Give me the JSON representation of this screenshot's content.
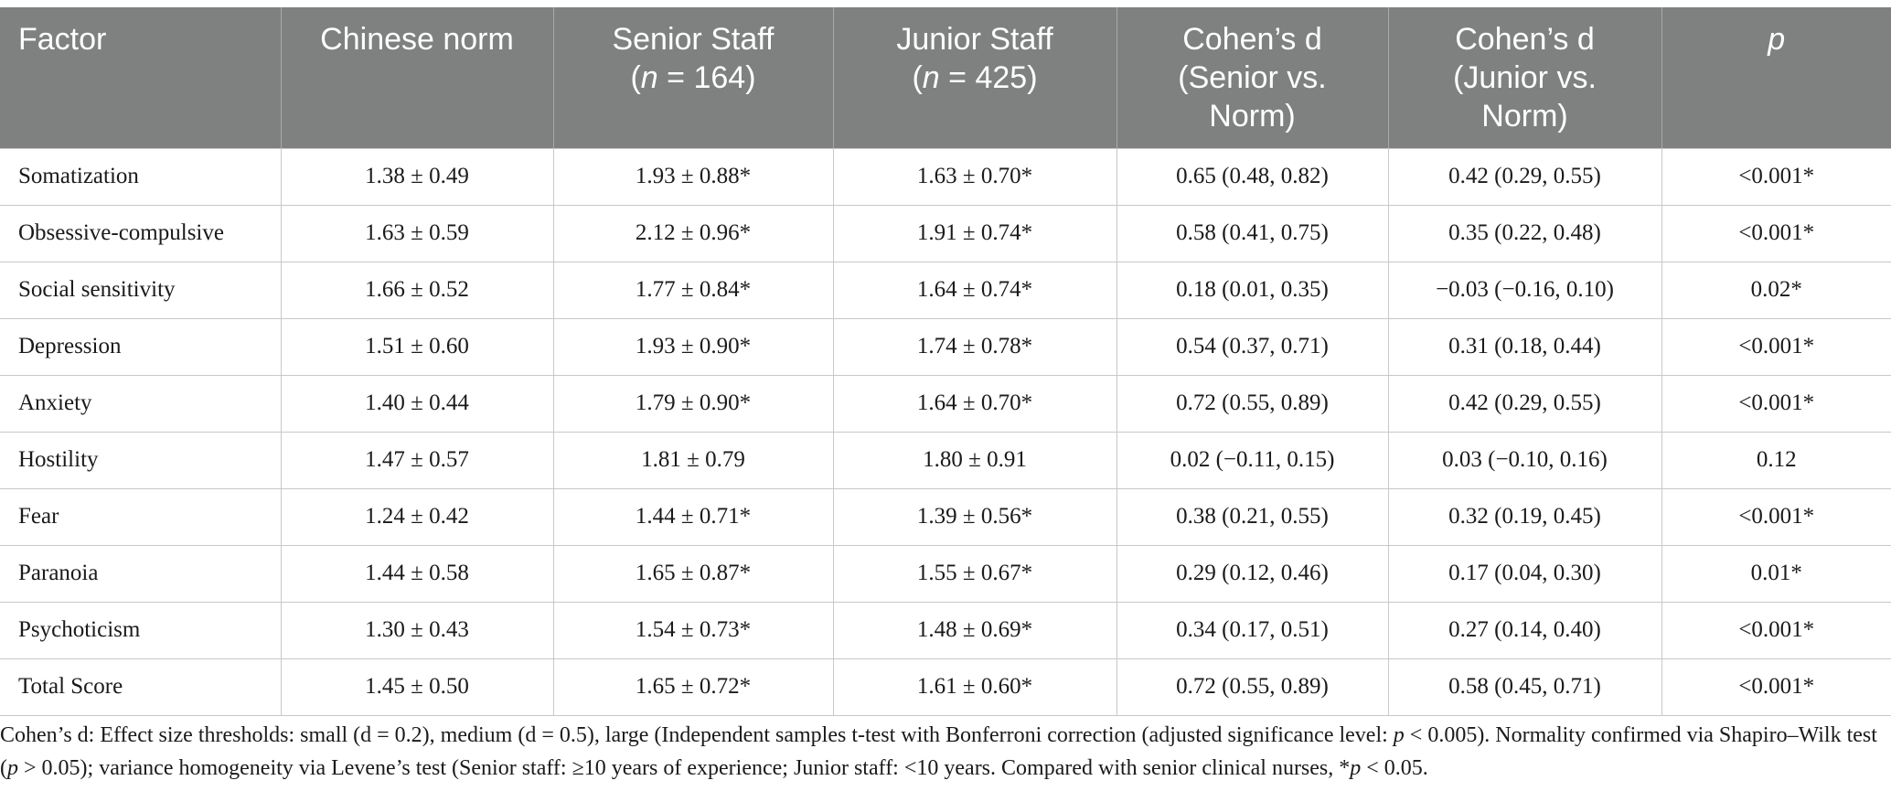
{
  "table": {
    "headers": [
      {
        "line1": "Factor",
        "line2": "",
        "line3": ""
      },
      {
        "line1": "Chinese norm",
        "line2": "",
        "line3": ""
      },
      {
        "line1": "Senior Staff",
        "line2_italic": "n",
        "line2_rest": " = 164)",
        "line2_open": "("
      },
      {
        "line1": "Junior Staff",
        "line2_italic": "n",
        "line2_rest": " = 425)",
        "line2_open": "("
      },
      {
        "line1": "Cohen’s d",
        "line2": "(Senior vs.",
        "line3": "Norm)"
      },
      {
        "line1": "Cohen’s d",
        "line2": "(Junior vs.",
        "line3": "Norm)"
      },
      {
        "line1": "p",
        "line2": "",
        "line3": ""
      }
    ],
    "rows": [
      [
        "Somatization",
        "1.38 ± 0.49",
        "1.93 ± 0.88*",
        "1.63 ± 0.70*",
        "0.65 (0.48, 0.82)",
        "0.42 (0.29, 0.55)",
        "<0.001*"
      ],
      [
        "Obsessive-compulsive",
        "1.63 ± 0.59",
        "2.12 ± 0.96*",
        "1.91 ± 0.74*",
        "0.58 (0.41, 0.75)",
        "0.35 (0.22, 0.48)",
        "<0.001*"
      ],
      [
        "Social sensitivity",
        "1.66 ± 0.52",
        "1.77 ± 0.84*",
        "1.64 ± 0.74*",
        "0.18 (0.01, 0.35)",
        "−0.03 (−0.16, 0.10)",
        "0.02*"
      ],
      [
        "Depression",
        "1.51 ± 0.60",
        "1.93 ± 0.90*",
        "1.74 ± 0.78*",
        "0.54 (0.37, 0.71)",
        "0.31 (0.18, 0.44)",
        "<0.001*"
      ],
      [
        "Anxiety",
        "1.40 ± 0.44",
        "1.79 ± 0.90*",
        "1.64 ± 0.70*",
        "0.72 (0.55, 0.89)",
        "0.42 (0.29, 0.55)",
        "<0.001*"
      ],
      [
        "Hostility",
        "1.47 ± 0.57",
        "1.81 ± 0.79",
        "1.80 ± 0.91",
        "0.02 (−0.11, 0.15)",
        "0.03 (−0.10, 0.16)",
        "0.12"
      ],
      [
        "Fear",
        "1.24 ± 0.42",
        "1.44 ± 0.71*",
        "1.39 ± 0.56*",
        "0.38 (0.21, 0.55)",
        "0.32 (0.19, 0.45)",
        "<0.001*"
      ],
      [
        "Paranoia",
        "1.44 ± 0.58",
        "1.65 ± 0.87*",
        "1.55 ± 0.67*",
        "0.29 (0.12, 0.46)",
        "0.17 (0.04, 0.30)",
        "0.01*"
      ],
      [
        "Psychoticism",
        "1.30 ± 0.43",
        "1.54 ± 0.73*",
        "1.48 ± 0.69*",
        "0.34 (0.17, 0.51)",
        "0.27 (0.14, 0.40)",
        "<0.001*"
      ],
      [
        "Total Score",
        "1.45 ± 0.50",
        "1.65 ± 0.72*",
        "1.61 ± 0.60*",
        "0.72 (0.55, 0.89)",
        "0.58 (0.45, 0.71)",
        "<0.001*"
      ]
    ]
  },
  "footnote": {
    "part1": "Cohen’s d: Effect size thresholds: small (d = 0.2), medium (d = 0.5), large (Independent samples t-test with Bonferroni correction (adjusted significance level: ",
    "p1": "p",
    "part2": " < 0.005). Normality confirmed via Shapiro–Wilk test (",
    "p2": "p",
    "part3": " > 0.05); variance homogeneity via Levene’s test (Senior staff: ≥10 years of experience; Junior staff: <10 years. Compared with senior clinical nurses, *",
    "p3": "p",
    "part4": " < 0.05."
  },
  "colors": {
    "header_bg": "#7f8180",
    "header_text": "#ffffff",
    "grid": "#c8c8c8"
  }
}
